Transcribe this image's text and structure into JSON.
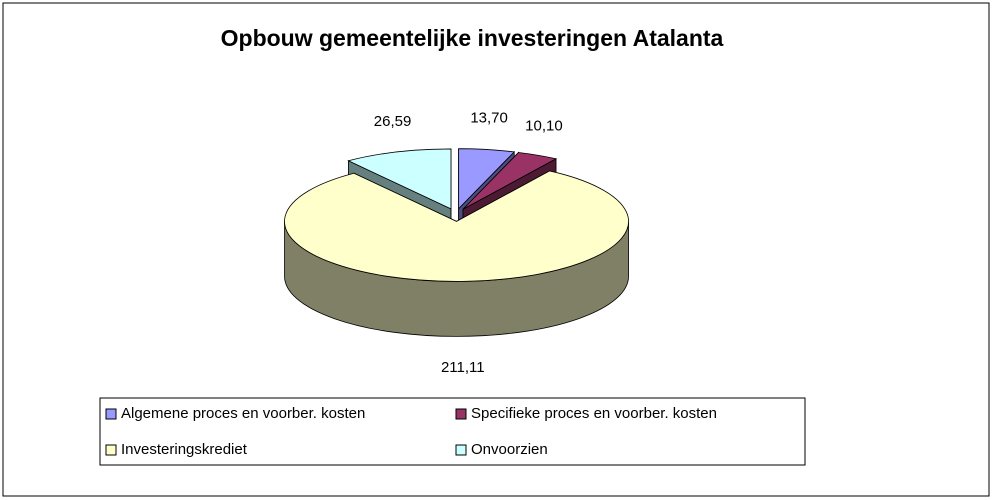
{
  "chart_data": {
    "type": "pie3d",
    "title": "Opbouw gemeentelijke investeringen Atalanta",
    "categories": [
      "Algemene proces en voorber. kosten",
      "Specifieke proces en voorber. kosten",
      "Investeringskrediet",
      "Onvoorzien"
    ],
    "values": [
      13.7,
      10.1,
      211.11,
      26.59
    ],
    "value_labels": [
      "13,70",
      "10,10",
      "211,11",
      "26,59"
    ],
    "colors": [
      "#9999ff",
      "#993366",
      "#ffffcc",
      "#ccffff"
    ],
    "legend": "bottom"
  }
}
